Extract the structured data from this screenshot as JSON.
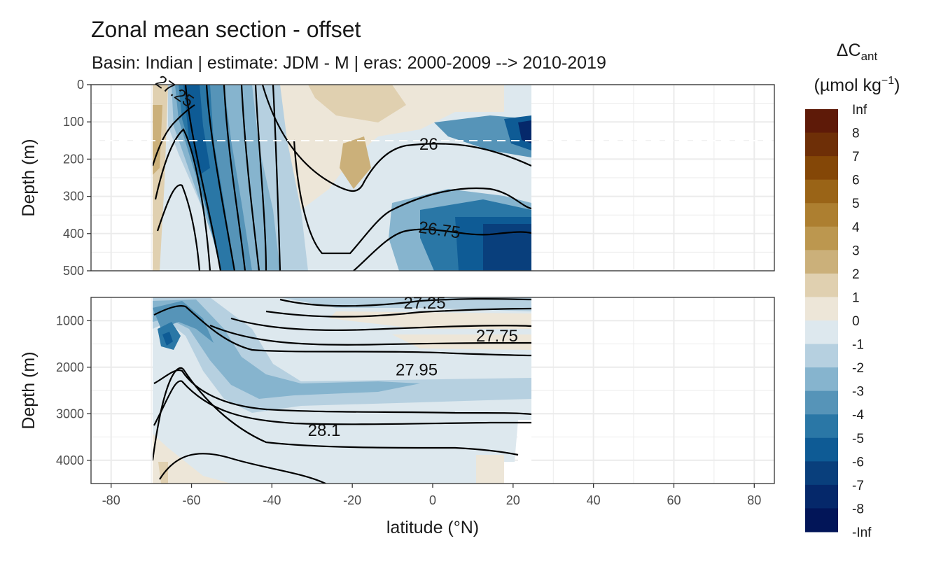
{
  "chart_data": {
    "type": "contour-section",
    "title": "Zonal mean section - offset",
    "subtitle": "Basin: Indian | estimate: JDM - M | eras: 2000-2009 --> 2010-2019",
    "xlabel": "latitude (°N)",
    "ylabel_top": "Depth (m)",
    "ylabel_bottom": "Depth (m)",
    "xlim": [
      -85,
      85
    ],
    "x_ticks": [
      -80,
      -60,
      -40,
      -20,
      0,
      20,
      40,
      60,
      80
    ],
    "x_tick_labels": [
      "-80",
      "-60",
      "-40",
      "-20",
      "0",
      "20",
      "40",
      "60",
      "80"
    ],
    "panels": [
      {
        "name": "upper",
        "ylim": [
          0,
          500
        ],
        "y_ticks": [
          0,
          100,
          200,
          300,
          400,
          500
        ],
        "y_tick_labels": [
          "0",
          "100",
          "200",
          "300",
          "400",
          "500"
        ],
        "data_lat_range": [
          -69.5,
          24.5
        ],
        "reference_depth_dashed": 150,
        "isopycnal_labels": [
          {
            "text": "27.25",
            "lat": -65,
            "depth": 30,
            "angle": 35
          },
          {
            "text": "26",
            "lat": -1,
            "depth": 175,
            "angle": 0
          },
          {
            "text": "26.75",
            "lat": 1.5,
            "depth": 405,
            "angle": 8
          }
        ]
      },
      {
        "name": "lower",
        "ylim": [
          500,
          4500
        ],
        "y_ticks": [
          1000,
          2000,
          3000,
          4000
        ],
        "y_tick_labels": [
          "1000",
          "2000",
          "3000",
          "4000"
        ],
        "data_lat_range": [
          -69.5,
          24.5
        ],
        "isopycnal_labels": [
          {
            "text": "27.25",
            "lat": -2,
            "depth": 740,
            "angle": 0
          },
          {
            "text": "27.75",
            "lat": 16,
            "depth": 1450,
            "angle": 0
          },
          {
            "text": "27.95",
            "lat": -4,
            "depth": 2180,
            "angle": 0
          },
          {
            "text": "28.1",
            "lat": -27,
            "depth": 3480,
            "angle": 0
          }
        ]
      }
    ],
    "legend": {
      "title_main": "ΔC",
      "title_sub": "ant",
      "units_prefix": "(µmol kg",
      "units_sup": "−1",
      "units_suffix": ")",
      "labels": [
        "Inf",
        "8",
        "7",
        "6",
        "5",
        "4",
        "3",
        "2",
        "1",
        "0",
        "-1",
        "-2",
        "-3",
        "-4",
        "-5",
        "-6",
        "-7",
        "-8",
        "-Inf"
      ],
      "colors": [
        "#5e1a08",
        "#6e2f07",
        "#844707",
        "#9a6417",
        "#ad7f30",
        "#bc974f",
        "#cbb07a",
        "#e0d0b0",
        "#ede6d8",
        "#dde8ee",
        "#b6d0e0",
        "#86b4ce",
        "#5694b8",
        "#2a77a6",
        "#0e5b95",
        "#093f7c",
        "#05286a",
        "#021558"
      ]
    }
  }
}
